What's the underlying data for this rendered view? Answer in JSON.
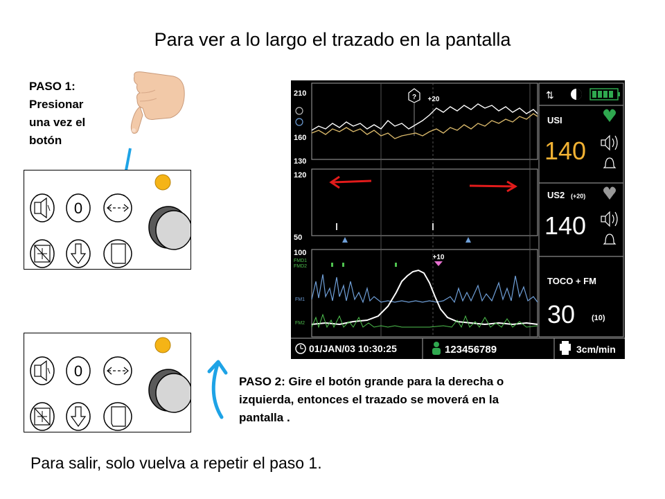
{
  "title": "Para ver a lo largo el trazado en la pantalla",
  "step1": {
    "lines": [
      "PASO 1:",
      "Presionar",
      "una vez el",
      "botón"
    ]
  },
  "step2": {
    "lines": [
      "PASO 2: Gire el botón grande para la derecha o",
      "izquierda, entonces el trazado se moverá en la",
      "pantalla ."
    ]
  },
  "exit_text": "Para salir, solo vuelva a repetir el paso 1.",
  "panel_buttons": [
    "mute-speaker-icon",
    "zero-icon",
    "left-right-arrows-icon",
    "alarm-mute-icon",
    "down-arrow-icon",
    "paper-icon"
  ],
  "panel_button_text": {
    "zero": "0"
  },
  "monitor": {
    "fhr_scale": [
      "210",
      "160",
      "130"
    ],
    "toco_scale": [
      "120",
      "50"
    ],
    "toco_lower_scale": [
      "100"
    ],
    "marker_question": "?",
    "marker_plus20": "+20",
    "marker_plus10": "+10",
    "fm_labels": [
      "FMD1",
      "FMD2"
    ],
    "fm1_label": "FM1",
    "fm2_label": "FM2",
    "us1": {
      "label": "USI",
      "value": "140"
    },
    "us2": {
      "label": "US2",
      "offset": "(+20)",
      "value": "140"
    },
    "toco": {
      "label": "TOCO + FM",
      "value": "30",
      "fm_count": "(10)"
    },
    "date_time": "01/JAN/03  10:30:25",
    "patient_id": "123456789",
    "paper_speed": "3cm/min"
  },
  "colors": {
    "arrow_blue": "#1ea3e6",
    "arrow_red": "#e11b1b",
    "knob_orange": "#f5b416",
    "fhr1_trace": "#ffffff",
    "fhr2_trace": "#d9b86a",
    "fm1_trace": "#6f9fd8",
    "fm2_trace": "#4fc24f",
    "us1_value": "#f2b233",
    "heart_green": "#2fa84f"
  }
}
